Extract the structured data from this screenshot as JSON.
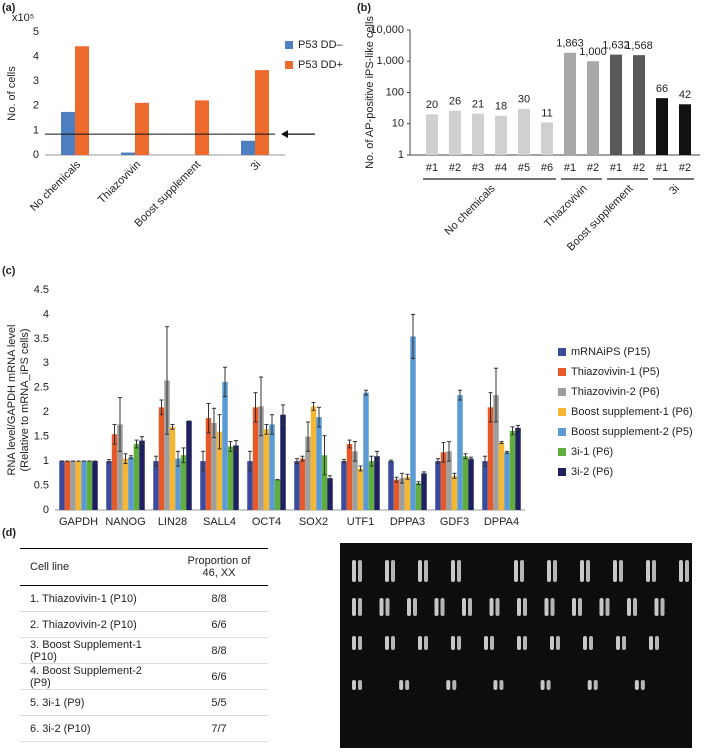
{
  "panel_labels": [
    "(a)",
    "(b)",
    "(c)",
    "(d)"
  ],
  "chart_data": [
    {
      "type": "bar",
      "ylabel": "No. of cells",
      "axis_multiplier": "x10⁵",
      "categories": [
        "No chemicals",
        "Thiazovivin",
        "Boost supplement",
        "3i"
      ],
      "series": [
        {
          "name": "P53 DD–",
          "color": "#4e7fc0",
          "values": [
            1.75,
            0.1,
            0,
            0.58
          ]
        },
        {
          "name": "P53 DD+",
          "color": "#ee6a2c",
          "values": [
            4.42,
            2.12,
            2.22,
            3.45
          ]
        }
      ],
      "ylim": [
        0,
        5
      ],
      "yticks": [
        0,
        1,
        2,
        3,
        4,
        5
      ],
      "hline": 0.85,
      "legend": "upper right"
    },
    {
      "type": "bar",
      "log": true,
      "ylabel": "No. of AP-positive iPS-like cells",
      "groups": [
        {
          "name": "No chemicals",
          "color": "#d0d0d0",
          "categories": [
            "#1",
            "#2",
            "#3",
            "#4",
            "#5",
            "#6"
          ],
          "values": [
            20,
            26,
            21,
            18,
            30,
            11
          ],
          "value_labels": [
            "20",
            "26",
            "21",
            "18",
            "30",
            "11"
          ]
        },
        {
          "name": "Thiazovivin",
          "color": "#a8a8a8",
          "categories": [
            "#1",
            "#2"
          ],
          "values": [
            1863,
            1000
          ],
          "value_labels": [
            "1,863",
            "1,000"
          ]
        },
        {
          "name": "Boost supplement",
          "color": "#595959",
          "categories": [
            "#1",
            "#2"
          ],
          "values": [
            1632,
            1568
          ],
          "value_labels": [
            "1,632",
            "1,568"
          ]
        },
        {
          "name": "3i",
          "color": "#111111",
          "categories": [
            "#1",
            "#2"
          ],
          "values": [
            66,
            42
          ],
          "value_labels": [
            "66",
            "42"
          ]
        }
      ],
      "ylim": [
        1,
        10000
      ],
      "yticks": [
        1,
        10,
        100,
        {
          "value": 1000,
          "label": "1,000"
        },
        {
          "value": 10000,
          "label": "10,000"
        }
      ]
    },
    {
      "type": "bar",
      "ylabel": [
        "RNA level/GAPDH mRNA level",
        "(Relative to mRNA_iPS cells)"
      ],
      "categories": [
        "GAPDH",
        "NANOG",
        "LIN28",
        "SALL4",
        "OCT4",
        "SOX2",
        "UTF1",
        "DPPA3",
        "GDF3",
        "DPPA4"
      ],
      "series": [
        {
          "name": "mRNAiPS (P15)",
          "color": "#3a4a9c",
          "values": [
            1,
            1.0,
            1.0,
            1.0,
            1.0,
            1.0,
            1.0,
            1.0,
            1.0,
            1.0
          ],
          "errors": [
            0,
            0.03,
            0.1,
            0.2,
            0.2,
            0.05,
            0.03,
            0.02,
            0.05,
            0.1
          ]
        },
        {
          "name": "Thiazovivin-1 (P5)",
          "color": "#e8592a",
          "values": [
            1,
            1.55,
            2.1,
            1.88,
            2.1,
            1.05,
            1.35,
            0.62,
            1.18,
            2.1
          ],
          "errors": [
            0,
            0.2,
            0.15,
            0.3,
            0.3,
            0.05,
            0.08,
            0.05,
            0.2,
            0.3
          ]
        },
        {
          "name": "Thiazovivin-2 (P6)",
          "color": "#9e9e9e",
          "values": [
            1,
            1.75,
            2.65,
            1.78,
            2.12,
            1.5,
            1.2,
            0.65,
            1.2,
            2.35
          ],
          "errors": [
            0,
            0.55,
            1.1,
            0.3,
            0.6,
            0.3,
            0.2,
            0.1,
            0.2,
            0.55
          ]
        },
        {
          "name": "Boost supplement-1 (P6)",
          "color": "#f5b731",
          "values": [
            1,
            1.05,
            1.7,
            1.6,
            1.65,
            2.12,
            0.85,
            0.68,
            0.7,
            1.38
          ],
          "errors": [
            0,
            0.1,
            0.05,
            0.35,
            0.1,
            0.08,
            0.05,
            0.05,
            0.05,
            0.02
          ]
        },
        {
          "name": "Boost supplement-2 (P5)",
          "color": "#5b9bd5",
          "values": [
            1,
            1.08,
            1.05,
            2.62,
            1.75,
            1.9,
            2.4,
            3.55,
            2.35,
            1.18
          ],
          "errors": [
            0,
            0.03,
            0.15,
            0.3,
            0.2,
            0.2,
            0.05,
            0.45,
            0.1,
            0.02
          ]
        },
        {
          "name": "3i-1 (P6)",
          "color": "#5fae3e",
          "values": [
            1,
            1.35,
            1.12,
            1.3,
            0.62,
            1.12,
            1.0,
            0.55,
            1.1,
            1.62
          ],
          "errors": [
            0,
            0.08,
            0.15,
            0.1,
            0,
            0.4,
            0.1,
            0.03,
            0.05,
            0.08
          ]
        },
        {
          "name": "3i-2 (P6)",
          "color": "#1f2060",
          "values": [
            1,
            1.42,
            1.82,
            1.32,
            1.95,
            0.65,
            1.1,
            0.75,
            1.05,
            1.68
          ],
          "errors": [
            0,
            0.08,
            0,
            0.1,
            0.2,
            0.05,
            0.1,
            0.03,
            0.03,
            0.05
          ]
        }
      ],
      "ylim": [
        0,
        4.5
      ],
      "yticks": [
        0,
        0.5,
        1,
        1.5,
        2,
        2.5,
        3,
        3.5,
        4,
        4.5
      ],
      "legend": "right"
    }
  ],
  "table": {
    "header": [
      "Cell line",
      "Proportion of 46, XX"
    ],
    "rows": [
      [
        "1. Thiazovivin-1 (P10)",
        "8/8"
      ],
      [
        "2. Thiazovivin-2 (P10)",
        "6/6"
      ],
      [
        "3. Boost Supplement-1 (P10)",
        "8/8"
      ],
      [
        "4. Boost Supplement-2 (P9)",
        "6/6"
      ],
      [
        "5. 3i-1 (P9)",
        "5/5"
      ],
      [
        "6. 3i-2 (P10)",
        "7/7"
      ]
    ]
  }
}
